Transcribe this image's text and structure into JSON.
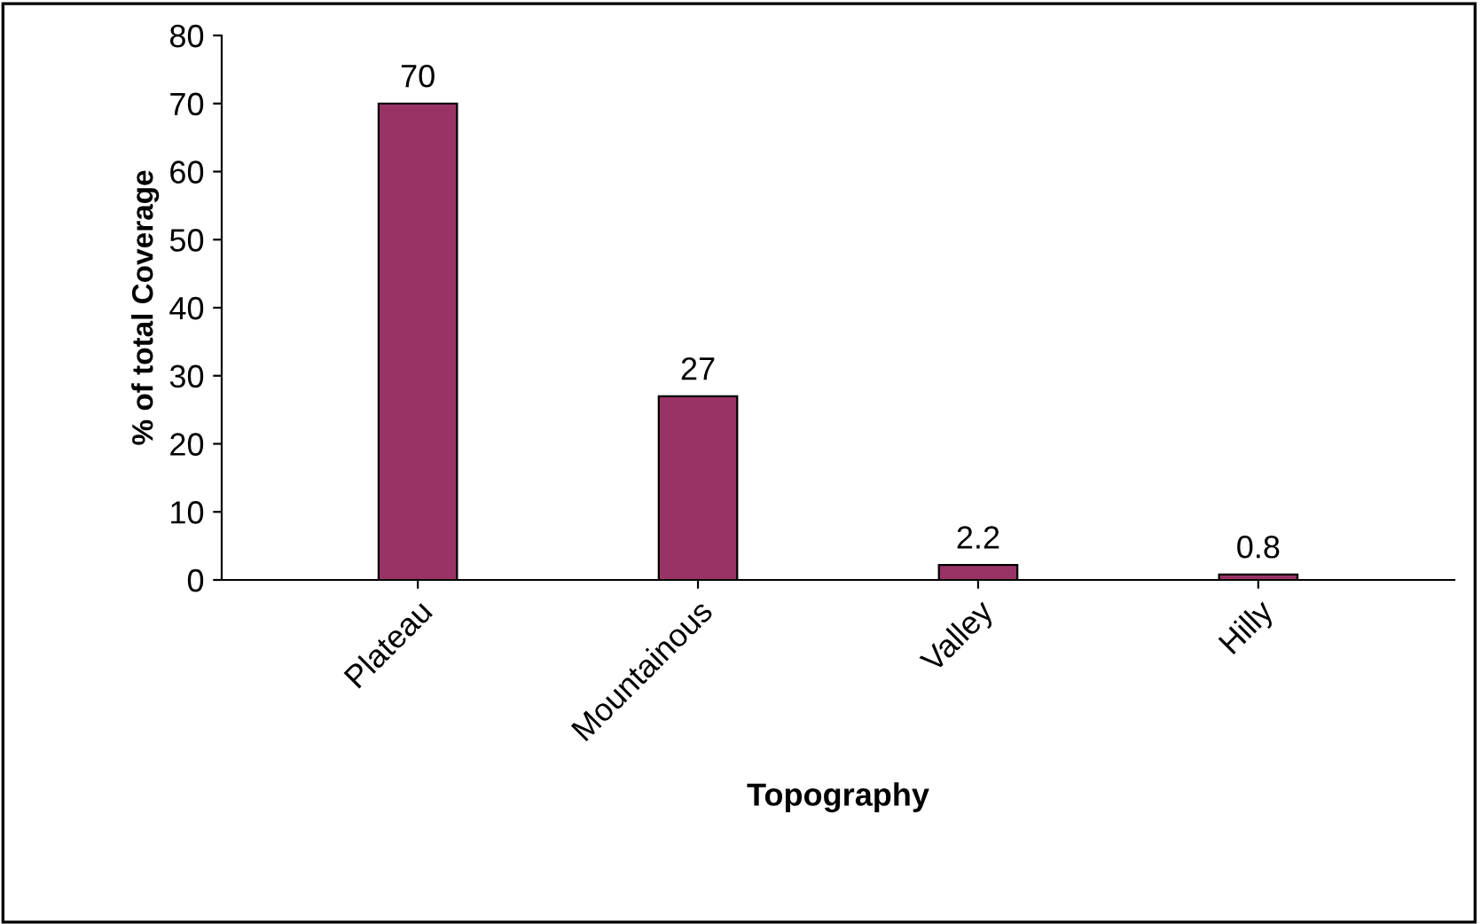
{
  "chart_data": {
    "type": "bar",
    "xlabel": "Topography",
    "ylabel": "% of total Coverage",
    "categories": [
      "Plateau",
      "Mountainous",
      "Valley",
      "Hilly"
    ],
    "values": [
      70,
      27,
      2.2,
      0.8
    ],
    "color": "#993366",
    "ylim": [
      0,
      80
    ],
    "yticks": [
      0,
      10,
      20,
      30,
      40,
      50,
      60,
      70,
      80
    ],
    "data_labels": true,
    "grid": false,
    "legend": false
  }
}
